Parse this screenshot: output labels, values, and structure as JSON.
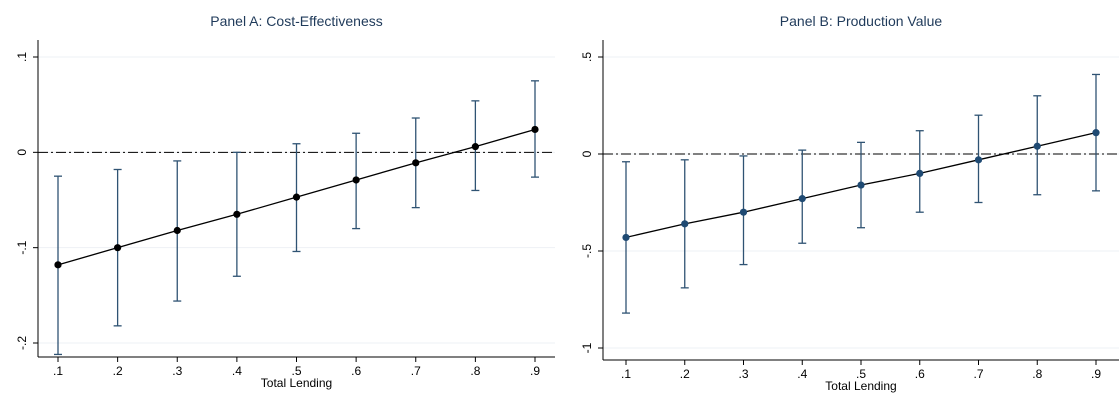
{
  "chart_data": [
    {
      "type": "line",
      "title": "Panel A: Cost-Effectiveness",
      "xlabel": "Total Lending",
      "ylabel": "",
      "x": [
        0.1,
        0.2,
        0.3,
        0.4,
        0.5,
        0.6,
        0.7,
        0.8,
        0.9
      ],
      "x_ticks": [
        ".1",
        ".2",
        ".3",
        ".4",
        ".5",
        ".6",
        ".7",
        ".8",
        ".9"
      ],
      "y_ticks": [
        {
          "value": -0.2,
          "label": "-.2"
        },
        {
          "value": -0.1,
          "label": "-.1"
        },
        {
          "value": 0,
          "label": "0"
        },
        {
          "value": 0.1,
          "label": ".1"
        }
      ],
      "xlim": [
        0.1,
        0.9
      ],
      "ylim": [
        -0.2,
        0.1
      ],
      "series": [
        {
          "values": [
            -0.118,
            -0.1,
            -0.082,
            -0.065,
            -0.047,
            -0.029,
            -0.011,
            0.006,
            0.024
          ],
          "lower": [
            -0.212,
            -0.182,
            -0.156,
            -0.13,
            -0.104,
            -0.08,
            -0.058,
            -0.04,
            -0.026
          ],
          "upper": [
            -0.025,
            -0.018,
            -0.009,
            0.0,
            0.009,
            0.02,
            0.036,
            0.054,
            0.075
          ]
        }
      ],
      "reference_line": 0,
      "grid": true,
      "colors": {
        "line": "#000000",
        "marker": "#000000",
        "error_bar": "#2f5373",
        "reference": "#000000",
        "grid": "#eef1f4"
      }
    },
    {
      "type": "line",
      "title": "Panel B: Production Value",
      "xlabel": "Total Lending",
      "ylabel": "",
      "x": [
        0.1,
        0.2,
        0.3,
        0.4,
        0.5,
        0.6,
        0.7,
        0.8,
        0.9
      ],
      "x_ticks": [
        ".1",
        ".2",
        ".3",
        ".4",
        ".5",
        ".6",
        ".7",
        ".8",
        ".9"
      ],
      "y_ticks": [
        {
          "value": -1,
          "label": "-1"
        },
        {
          "value": -0.5,
          "label": "-.5"
        },
        {
          "value": 0,
          "label": "0"
        },
        {
          "value": 0.5,
          "label": ".5"
        }
      ],
      "xlim": [
        0.1,
        0.9
      ],
      "ylim": [
        -1,
        0.5
      ],
      "series": [
        {
          "values": [
            -0.43,
            -0.36,
            -0.3,
            -0.23,
            -0.16,
            -0.1,
            -0.03,
            0.04,
            0.11
          ],
          "lower": [
            -0.82,
            -0.69,
            -0.57,
            -0.46,
            -0.38,
            -0.3,
            -0.25,
            -0.21,
            -0.19
          ],
          "upper": [
            -0.04,
            -0.03,
            -0.01,
            0.02,
            0.06,
            0.12,
            0.2,
            0.3,
            0.41
          ]
        }
      ],
      "reference_line": 0,
      "grid": true,
      "colors": {
        "line": "#000000",
        "marker": "#1f4a73",
        "error_bar": "#2f5373",
        "reference": "#000000",
        "grid": "#eef1f4"
      }
    }
  ]
}
